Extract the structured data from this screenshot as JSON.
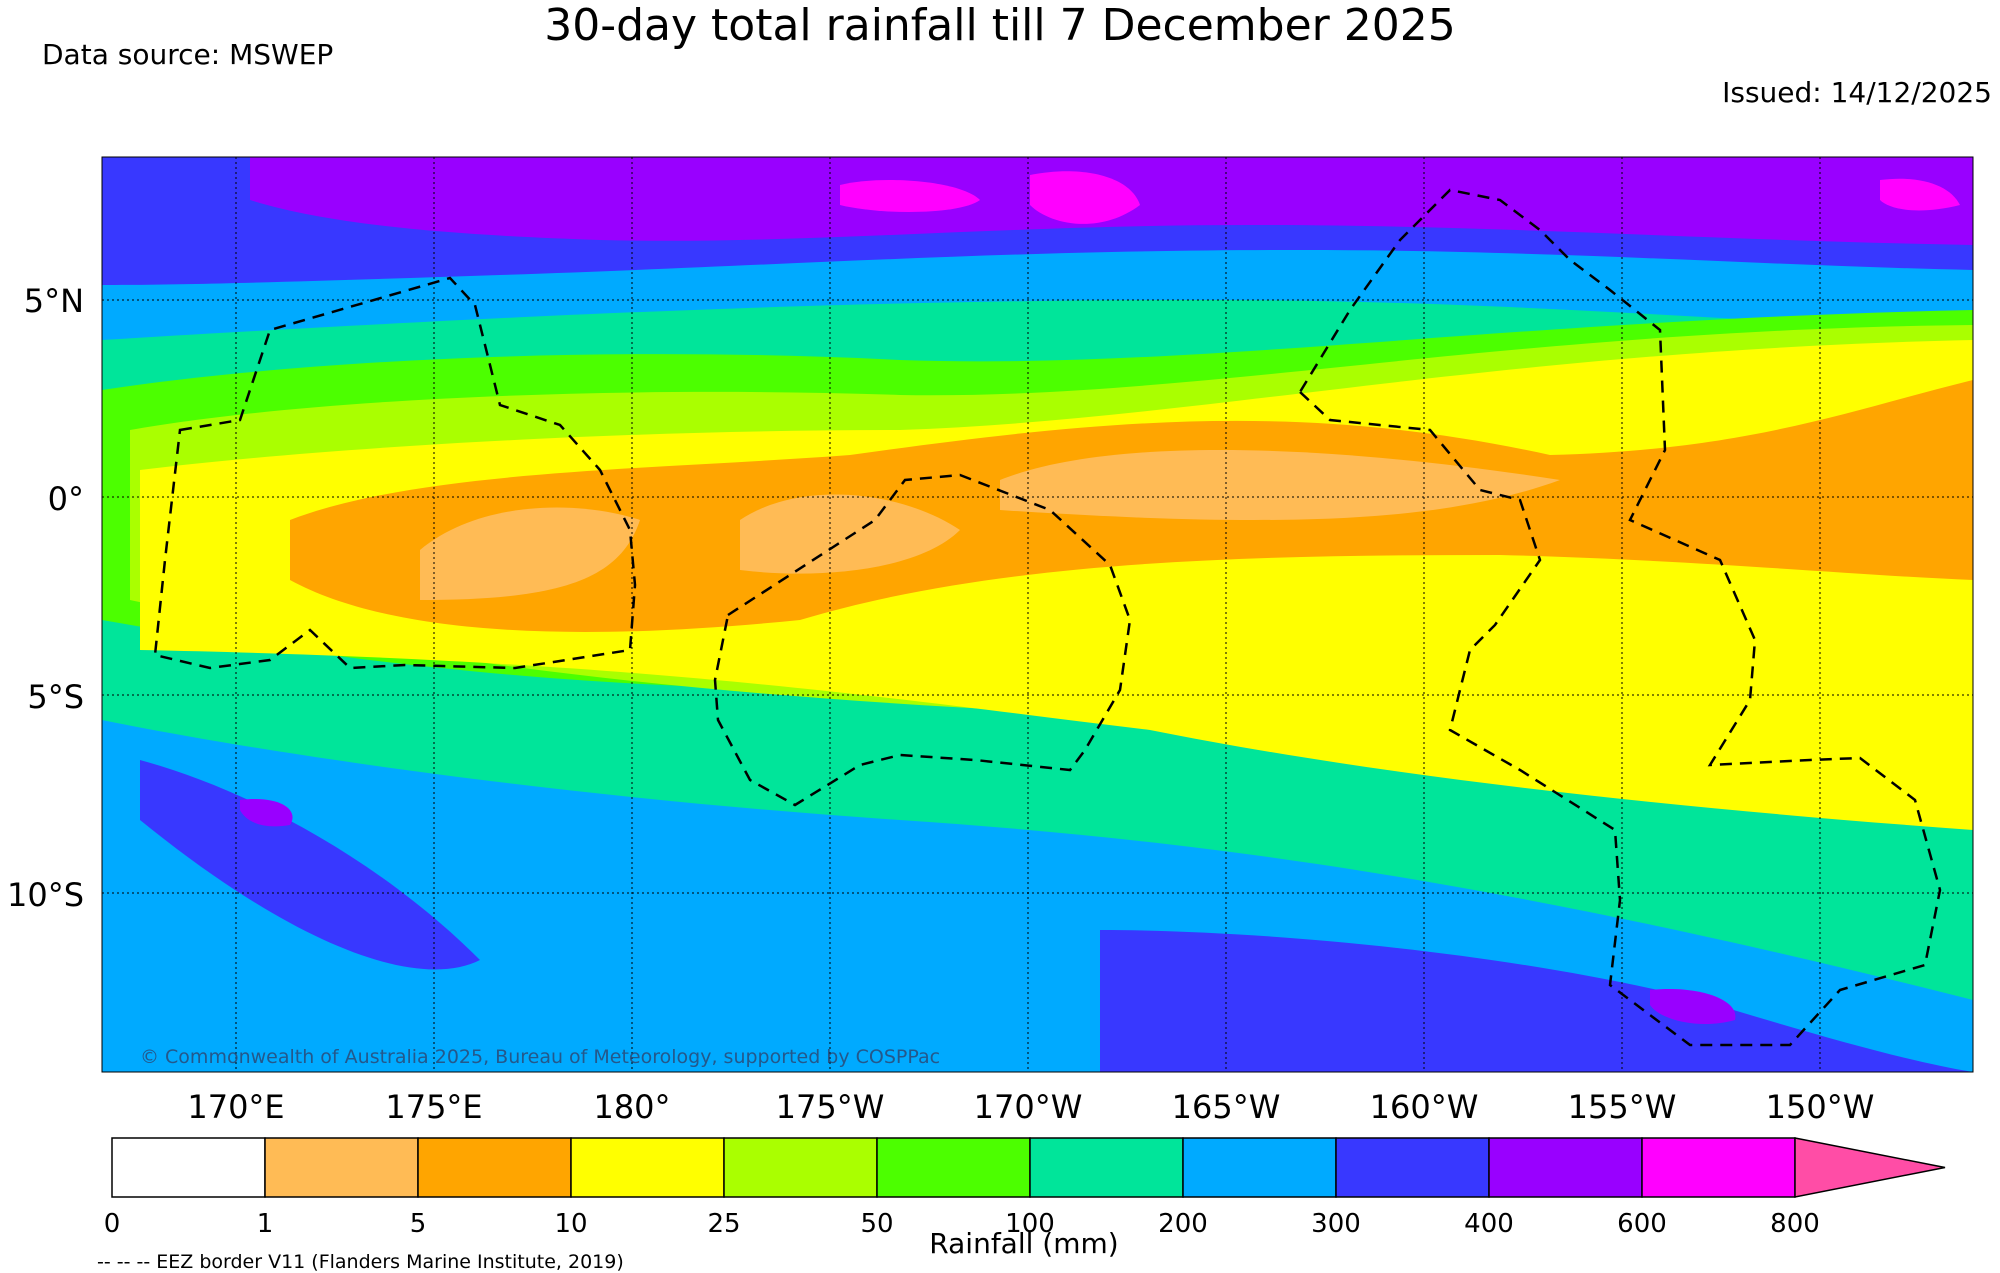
{
  "title": "30-day total rainfall till 7 December 2025",
  "source": "Data source: MSWEP",
  "issued": "Issued: 14/12/2025",
  "copyright": "© Commonwealth of Australia 2025, Bureau of Meteorology, supported by COSPPac",
  "eez_note": "-- -- -- EEZ border V11 (Flanders Marine Institute, 2019)",
  "map": {
    "lat_range": [
      -14.5,
      8.7
    ],
    "lon_range_east": [
      166.5,
      213.8
    ],
    "lat_labels": [
      "5°N",
      "0°",
      "5°S",
      "10°S"
    ],
    "lon_labels": [
      "170°E",
      "175°E",
      "180°",
      "175°W",
      "170°W",
      "165°W",
      "160°W",
      "155°W",
      "150°W"
    ]
  },
  "colorbar": {
    "title": "Rainfall (mm)",
    "ticks": [
      "0",
      "1",
      "5",
      "10",
      "25",
      "50",
      "100",
      "200",
      "300",
      "400",
      "600",
      "800"
    ],
    "colors": [
      "#ffffff",
      "#ffbb55",
      "#ffa500",
      "#ffff00",
      "#aaff00",
      "#4cff00",
      "#00e59a",
      "#00aaff",
      "#3838ff",
      "#9900ff",
      "#ff00ff",
      "#ff4da6"
    ]
  }
}
